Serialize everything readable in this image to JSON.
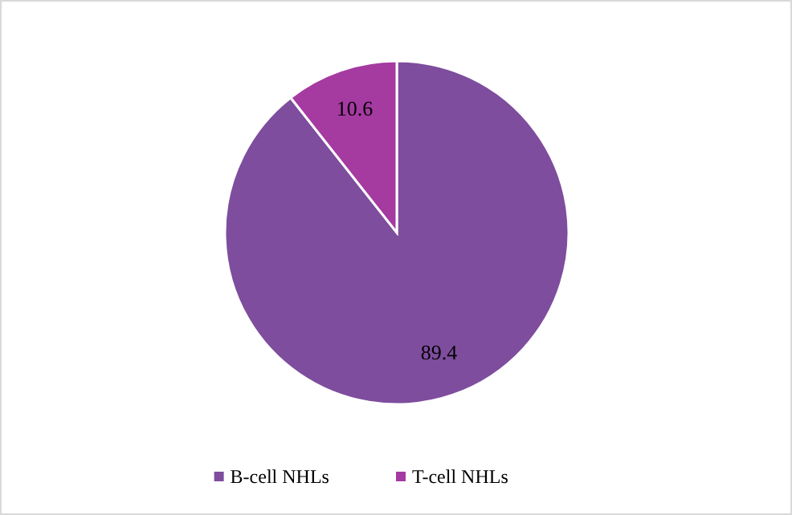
{
  "chart_data": {
    "type": "pie",
    "categories": [
      "B-cell NHLs",
      "T-cell NHLs"
    ],
    "values": [
      89.4,
      10.6
    ],
    "colors": [
      "#7e4d9e",
      "#a53aa1"
    ],
    "data_labels": true,
    "legend": "bottom"
  }
}
